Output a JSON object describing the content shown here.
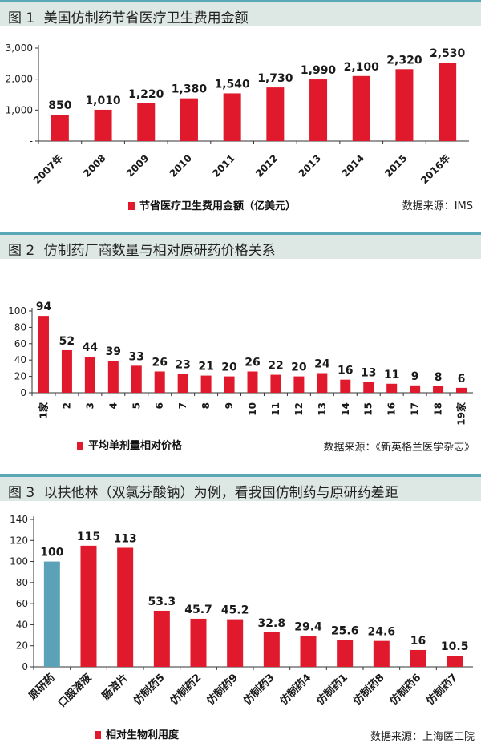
{
  "charts": [
    {
      "fig": "图 1",
      "title": "美国仿制药节省医疗卫生费用金额",
      "legend": "节省医疗卫生费用金额（亿美元）",
      "source": "数据来源：IMS",
      "color": "#e0192c"
    },
    {
      "fig": "图 2",
      "title": "仿制药厂商数量与相对原研药价格关系",
      "legend": "平均单剂量相对价格",
      "source": "数据来源：《新英格兰医学杂志》",
      "color": "#e0192c"
    },
    {
      "fig": "图 3",
      "title": "以扶他林（双氯芬酸钠）为例，看我国仿制药与原研药差距",
      "legend": "相对生物利用度",
      "source": "数据来源：上海医工院",
      "color": "#e0192c",
      "highlight_color": "#5ba2b8"
    }
  ],
  "chart_data": [
    {
      "type": "bar",
      "title": "美国仿制药节省医疗卫生费用金额",
      "categories": [
        "2007年",
        "2008",
        "2009",
        "2010",
        "2011",
        "2012",
        "2013",
        "2014",
        "2015",
        "2016年"
      ],
      "series": [
        {
          "name": "节省医疗卫生费用金额（亿美元）",
          "values": [
            850,
            1010,
            1220,
            1380,
            1540,
            1730,
            1990,
            2100,
            2320,
            2530
          ]
        }
      ],
      "data_labels": [
        "850",
        "1,010",
        "1,220",
        "1,380",
        "1,540",
        "1,730",
        "1,990",
        "2,100",
        "2,320",
        "2,530"
      ],
      "yticks": [
        "-",
        "1,000",
        "2,000",
        "3,000"
      ],
      "ylim": [
        0,
        3000
      ],
      "grid": false,
      "legend_position": "bottom-left"
    },
    {
      "type": "bar",
      "title": "仿制药厂商数量与相对原研药价格关系",
      "categories": [
        "1家",
        "2",
        "3",
        "4",
        "5",
        "6",
        "7",
        "8",
        "9",
        "10",
        "11",
        "12",
        "13",
        "14",
        "15",
        "16",
        "17",
        "18",
        "19家"
      ],
      "series": [
        {
          "name": "平均单剂量相对价格",
          "values": [
            94,
            52,
            44,
            39,
            33,
            26,
            23,
            21,
            20,
            26,
            22,
            20,
            24,
            16,
            13,
            11,
            9,
            8,
            6
          ]
        }
      ],
      "yticks": [
        "0",
        "20",
        "40",
        "60",
        "80",
        "100"
      ],
      "ylim": [
        0,
        100
      ],
      "grid": false,
      "legend_position": "bottom-left"
    },
    {
      "type": "bar",
      "title": "以扶他林（双氯芬酸钠）为例，看我国仿制药与原研药差距",
      "categories": [
        "原研药",
        "口服溶液",
        "肠溶片",
        "仿制药5",
        "仿制药2",
        "仿制药9",
        "仿制药3",
        "仿制药4",
        "仿制药1",
        "仿制药8",
        "仿制药6",
        "仿制药7"
      ],
      "series": [
        {
          "name": "相对生物利用度",
          "values": [
            100,
            115,
            113,
            53.3,
            45.7,
            45.2,
            32.8,
            29.4,
            25.6,
            24.6,
            16,
            10.5
          ]
        }
      ],
      "data_labels": [
        "100",
        "115",
        "113",
        "53.3",
        "45.7",
        "45.2",
        "32.8",
        "29.4",
        "25.6",
        "24.6",
        "16",
        "10.5"
      ],
      "yticks": [
        "0",
        "20",
        "40",
        "60",
        "80",
        "100",
        "120",
        "140"
      ],
      "ylim": [
        0,
        140
      ],
      "highlight_index": 0,
      "grid": false,
      "legend_position": "bottom-left"
    }
  ]
}
